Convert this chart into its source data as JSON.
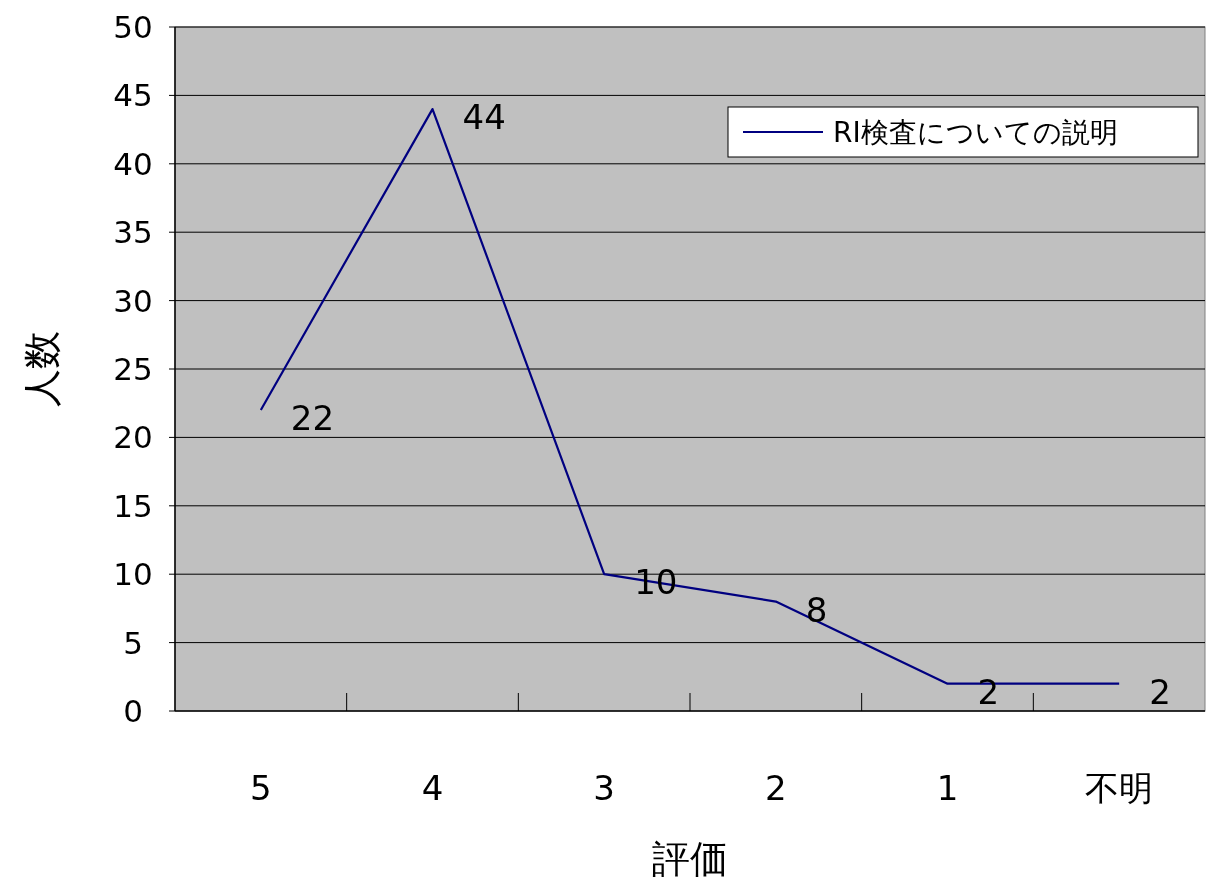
{
  "chart_data": {
    "type": "line",
    "xlabel": "評価",
    "ylabel": "人数",
    "categories": [
      "5",
      "4",
      "3",
      "2",
      "1",
      "不明"
    ],
    "series": [
      {
        "name": "RI検査についての説明",
        "color": "#000080",
        "values": [
          22,
          44,
          10,
          8,
          2,
          2
        ]
      }
    ],
    "ylim": [
      0,
      50
    ],
    "yticks": [
      0,
      5,
      10,
      15,
      20,
      25,
      30,
      35,
      40,
      45,
      50
    ],
    "grid": "y",
    "legend": "top right",
    "data_labels": true
  }
}
